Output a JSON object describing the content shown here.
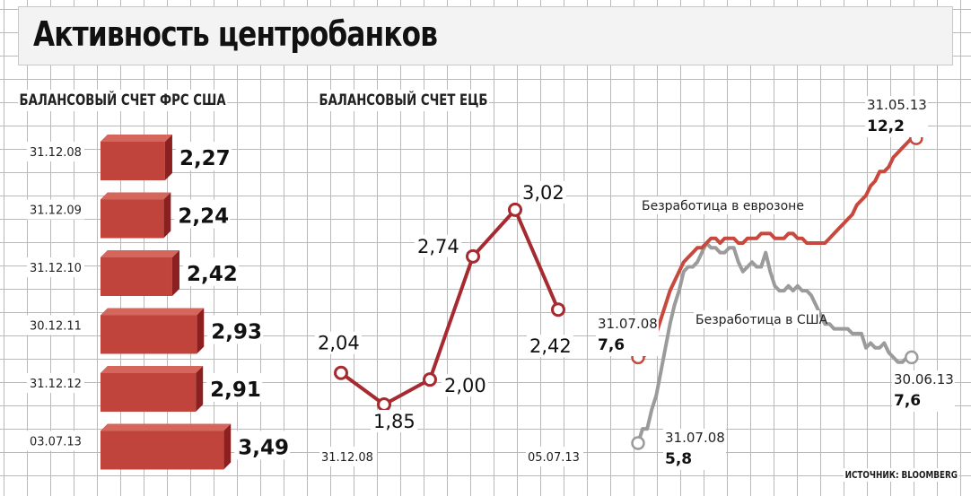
{
  "title": "Активность центробанков",
  "source": "ИСТОЧНИК: BLOOMBERG",
  "colors": {
    "bar_front": "#c0443b",
    "bar_top": "#d5665c",
    "bar_side": "#8c1f1f",
    "ecb_line": "#a62a2f",
    "eurozone_line": "#c8483d",
    "us_line": "#9b9b9b"
  },
  "chart_data": [
    {
      "type": "bar",
      "title": "БАЛАНСОВЫЙ СЧЕТ ФРС США",
      "categories": [
        "31.12.08",
        "31.12.09",
        "31.12.10",
        "30.12.11",
        "31.12.12",
        "03.07.13"
      ],
      "values": [
        2.27,
        2.24,
        2.42,
        2.93,
        2.91,
        3.49
      ],
      "value_labels": [
        "2,27",
        "2,24",
        "2,42",
        "2,93",
        "2,91",
        "3,49"
      ]
    },
    {
      "type": "line",
      "title": "БАЛАНСОВЫЙ СЧЕТ ЕЦБ",
      "x_labels": [
        "31.12.08",
        "05.07.13"
      ],
      "values": [
        2.04,
        1.85,
        2.0,
        2.74,
        3.02,
        2.42
      ],
      "value_labels": [
        "2,04",
        "1,85",
        "2,00",
        "2,74",
        "3,02",
        "2,42"
      ]
    },
    {
      "type": "line",
      "series": [
        {
          "name": "Безработица в еврозоне",
          "start_date": "31.07.08",
          "start_label": "7,6",
          "end_date": "31.05.13",
          "end_label": "12,2",
          "values": [
            7.6,
            7.6,
            7.7,
            7.8,
            8.1,
            8.4,
            8.7,
            9.0,
            9.2,
            9.4,
            9.6,
            9.7,
            9.8,
            9.9,
            9.9,
            10.0,
            10.1,
            10.1,
            10.0,
            10.1,
            10.1,
            10.1,
            10.0,
            10.0,
            10.1,
            10.1,
            10.1,
            10.2,
            10.2,
            10.2,
            10.1,
            10.1,
            10.1,
            10.2,
            10.2,
            10.1,
            10.1,
            10.0,
            10.0,
            10.0,
            10.0,
            10.0,
            10.1,
            10.2,
            10.3,
            10.4,
            10.5,
            10.6,
            10.8,
            10.9,
            11.0,
            11.2,
            11.3,
            11.5,
            11.5,
            11.6,
            11.8,
            11.9,
            12.0,
            12.1,
            12.2,
            12.2
          ]
        },
        {
          "name": "Безработица в США",
          "start_date": "31.07.08",
          "start_label": "5,8",
          "end_date": "30.06.13",
          "end_label": "7,6",
          "values": [
            5.8,
            6.1,
            6.1,
            6.5,
            6.8,
            7.3,
            7.8,
            8.3,
            8.7,
            9.0,
            9.4,
            9.5,
            9.5,
            9.6,
            9.8,
            10.0,
            9.9,
            9.9,
            9.8,
            9.8,
            9.9,
            9.9,
            9.6,
            9.4,
            9.5,
            9.6,
            9.5,
            9.5,
            9.8,
            9.4,
            9.1,
            9.0,
            9.0,
            9.1,
            9.0,
            9.1,
            9.0,
            9.0,
            8.9,
            8.7,
            8.5,
            8.3,
            8.3,
            8.2,
            8.2,
            8.2,
            8.2,
            8.1,
            8.1,
            8.1,
            7.8,
            7.9,
            7.8,
            7.8,
            7.9,
            7.7,
            7.6,
            7.5,
            7.5,
            7.6,
            7.6
          ]
        }
      ]
    }
  ]
}
